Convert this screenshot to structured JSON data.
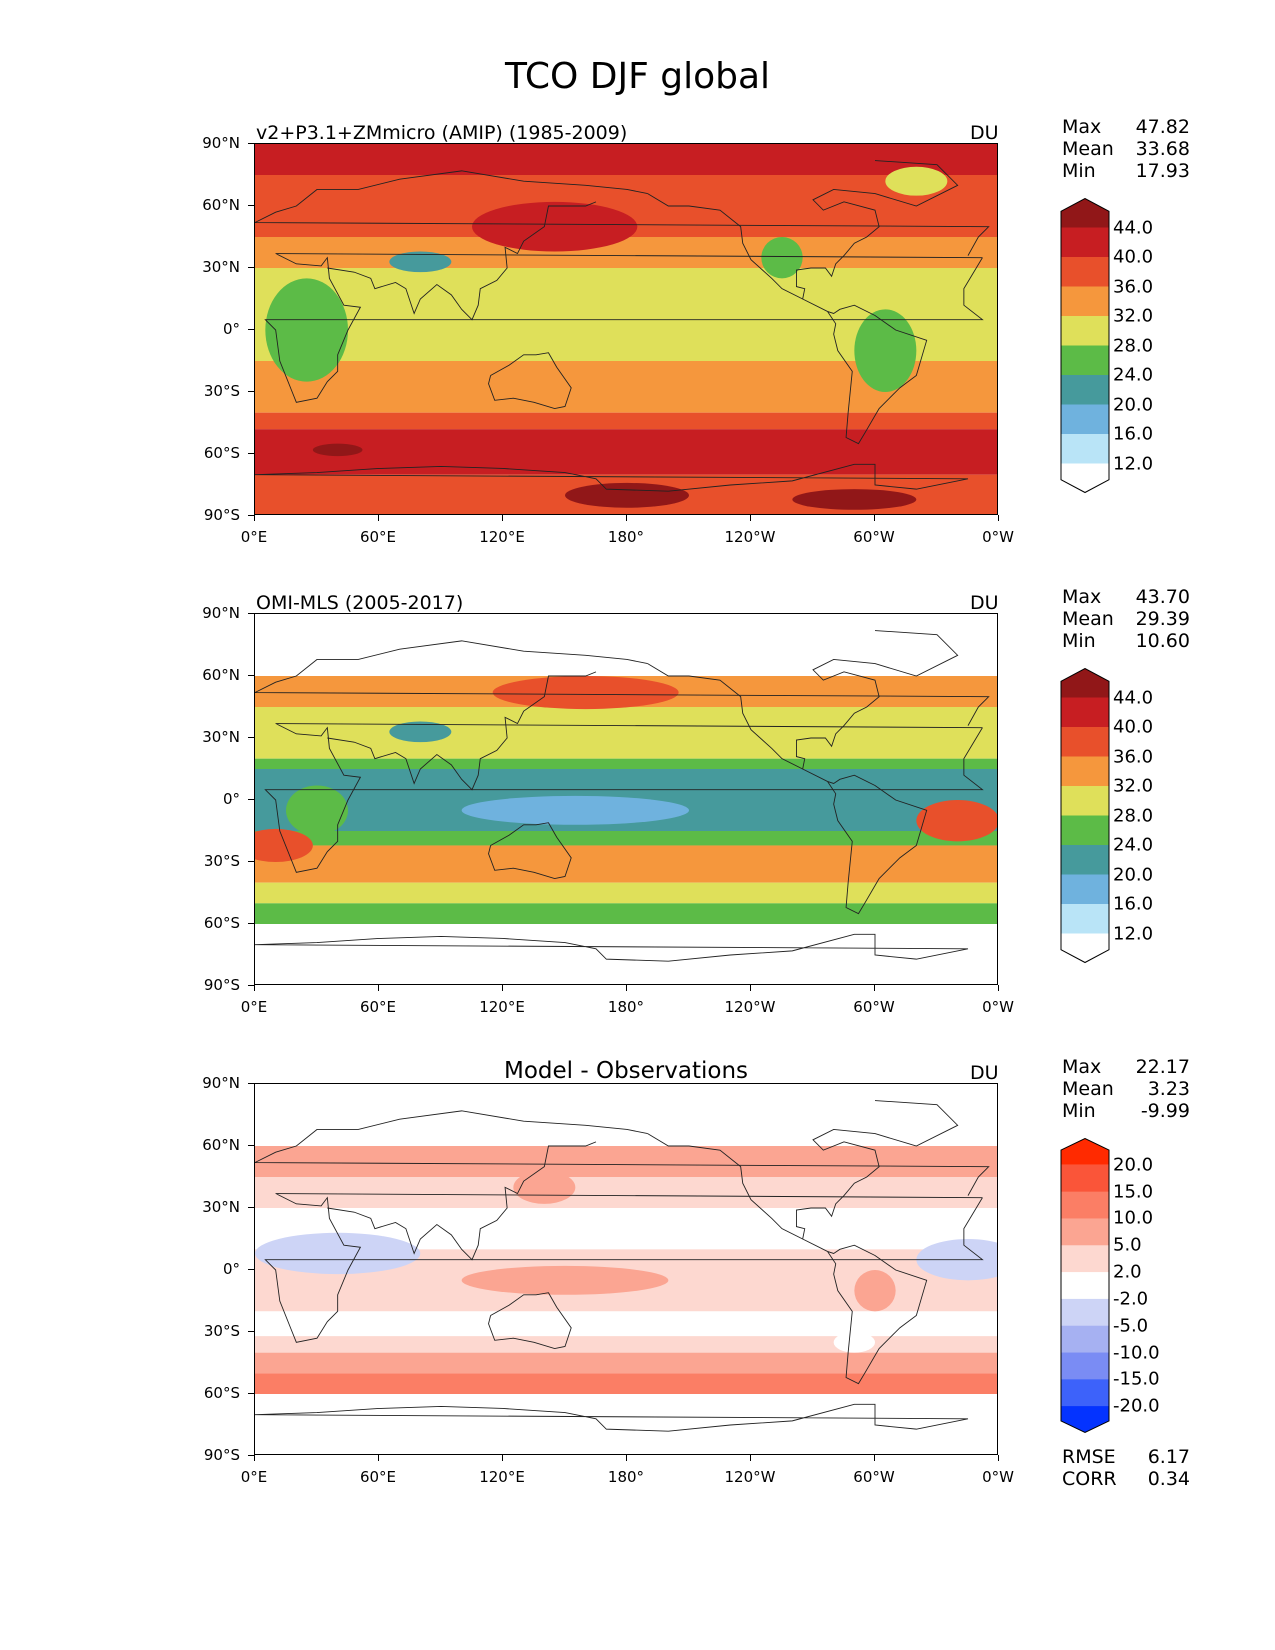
{
  "figure_title": "TCO DJF global",
  "chart_data": [
    {
      "type": "heatmap",
      "panel": "model",
      "title_left": "v2+P3.1+ZMmicro (AMIP) (1985-2009)",
      "title_center": "",
      "units": "DU",
      "x_tick_labels": [
        "0°E",
        "60°E",
        "120°E",
        "180°",
        "120°W",
        "60°W",
        "0°W"
      ],
      "y_tick_labels": [
        "90°N",
        "60°N",
        "30°N",
        "0°",
        "30°S",
        "60°S",
        "90°S"
      ],
      "stats": [
        {
          "label": "Max",
          "value": "47.82"
        },
        {
          "label": "Mean",
          "value": "33.68"
        },
        {
          "label": "Min",
          "value": "17.93"
        }
      ],
      "colorbar": {
        "levels": [
          "44.0",
          "40.0",
          "36.0",
          "32.0",
          "28.0",
          "24.0",
          "20.0",
          "16.0",
          "12.0"
        ],
        "colors": [
          "#ffffff",
          "#b9e4f7",
          "#6fb2de",
          "#469a9c",
          "#5cbb47",
          "#dfe05a",
          "#f5973d",
          "#e8502b",
          "#c71e22",
          "#911718"
        ]
      },
      "zonal_bands": [
        {
          "lat_from": 90,
          "lat_to": 75,
          "value": 42
        },
        {
          "lat_from": 75,
          "lat_to": 60,
          "value": 38
        },
        {
          "lat_from": 60,
          "lat_to": 45,
          "value": 36
        },
        {
          "lat_from": 45,
          "lat_to": 30,
          "value": 33
        },
        {
          "lat_from": 30,
          "lat_to": -15,
          "value": 30
        },
        {
          "lat_from": -15,
          "lat_to": -40,
          "value": 34
        },
        {
          "lat_from": -40,
          "lat_to": -48,
          "value": 37
        },
        {
          "lat_from": -48,
          "lat_to": -70,
          "value": 41
        },
        {
          "lat_from": -70,
          "lat_to": -90,
          "value": 37
        }
      ],
      "anomalies": [
        {
          "lon": 145,
          "lat": 50,
          "rlon": 40,
          "rlat": 12,
          "value": 41
        },
        {
          "lon": 25,
          "lat": 0,
          "rlon": 20,
          "rlat": 25,
          "value": 26
        },
        {
          "lon": 305,
          "lat": -10,
          "rlon": 15,
          "rlat": 20,
          "value": 26
        },
        {
          "lon": 80,
          "lat": 33,
          "rlon": 15,
          "rlat": 5,
          "value": 21
        },
        {
          "lon": 255,
          "lat": 35,
          "rlon": 10,
          "rlat": 10,
          "value": 26
        },
        {
          "lon": 180,
          "lat": -80,
          "rlon": 30,
          "rlat": 6,
          "value": 46
        },
        {
          "lon": 290,
          "lat": -82,
          "rlon": 30,
          "rlat": 5,
          "value": 46
        },
        {
          "lon": 40,
          "lat": -58,
          "rlon": 12,
          "rlat": 3,
          "value": 45
        },
        {
          "lon": 320,
          "lat": 72,
          "rlon": 15,
          "rlat": 7,
          "value": 30
        }
      ]
    },
    {
      "type": "heatmap",
      "panel": "observations",
      "title_left": "OMI-MLS (2005-2017)",
      "title_center": "",
      "units": "DU",
      "x_tick_labels": [
        "0°E",
        "60°E",
        "120°E",
        "180°",
        "120°W",
        "60°W",
        "0°W"
      ],
      "y_tick_labels": [
        "90°N",
        "60°N",
        "30°N",
        "0°",
        "30°S",
        "60°S",
        "90°S"
      ],
      "data_lat_range": [
        -60,
        60
      ],
      "stats": [
        {
          "label": "Max",
          "value": "43.70"
        },
        {
          "label": "Mean",
          "value": "29.39"
        },
        {
          "label": "Min",
          "value": "10.60"
        }
      ],
      "colorbar": {
        "levels": [
          "44.0",
          "40.0",
          "36.0",
          "32.0",
          "28.0",
          "24.0",
          "20.0",
          "16.0",
          "12.0"
        ],
        "colors": [
          "#ffffff",
          "#b9e4f7",
          "#6fb2de",
          "#469a9c",
          "#5cbb47",
          "#dfe05a",
          "#f5973d",
          "#e8502b",
          "#c71e22",
          "#911718"
        ]
      },
      "zonal_bands": [
        {
          "lat_from": 60,
          "lat_to": 45,
          "value": 33
        },
        {
          "lat_from": 45,
          "lat_to": 20,
          "value": 30
        },
        {
          "lat_from": 20,
          "lat_to": 15,
          "value": 26
        },
        {
          "lat_from": 15,
          "lat_to": -15,
          "value": 22
        },
        {
          "lat_from": -15,
          "lat_to": -22,
          "value": 26
        },
        {
          "lat_from": -22,
          "lat_to": -40,
          "value": 33
        },
        {
          "lat_from": -40,
          "lat_to": -50,
          "value": 30
        },
        {
          "lat_from": -50,
          "lat_to": -60,
          "value": 26
        }
      ],
      "anomalies": [
        {
          "lon": 160,
          "lat": 52,
          "rlon": 45,
          "rlat": 8,
          "value": 38
        },
        {
          "lon": 155,
          "lat": -5,
          "rlon": 55,
          "rlat": 7,
          "value": 19
        },
        {
          "lon": 340,
          "lat": -10,
          "rlon": 20,
          "rlat": 10,
          "value": 37
        },
        {
          "lon": 10,
          "lat": -22,
          "rlon": 18,
          "rlat": 8,
          "value": 37
        },
        {
          "lon": 80,
          "lat": 33,
          "rlon": 15,
          "rlat": 5,
          "value": 21
        },
        {
          "lon": 30,
          "lat": -5,
          "rlon": 15,
          "rlat": 12,
          "value": 26
        }
      ]
    },
    {
      "type": "heatmap",
      "panel": "difference",
      "title_left": "",
      "title_center": "Model - Observations",
      "units": "DU",
      "x_tick_labels": [
        "0°E",
        "60°E",
        "120°E",
        "180°",
        "120°W",
        "60°W",
        "0°W"
      ],
      "y_tick_labels": [
        "90°N",
        "60°N",
        "30°N",
        "0°",
        "30°S",
        "60°S",
        "90°S"
      ],
      "data_lat_range": [
        -60,
        60
      ],
      "stats": [
        {
          "label": "Max",
          "value": "22.17"
        },
        {
          "label": "Mean",
          "value": "3.23"
        },
        {
          "label": "Min",
          "value": "-9.99"
        }
      ],
      "extra_stats": [
        {
          "label": "RMSE",
          "value": "6.17"
        },
        {
          "label": "CORR",
          "value": "0.34"
        }
      ],
      "colorbar": {
        "levels": [
          "20.0",
          "15.0",
          "10.0",
          "5.0",
          "2.0",
          "-2.0",
          "-5.0",
          "-10.0",
          "-15.0",
          "-20.0"
        ],
        "colors": [
          "#0433ff",
          "#3d62fa",
          "#7a8cf4",
          "#a6b1f2",
          "#cdd4f6",
          "#ffffff",
          "#fdd8d0",
          "#fba592",
          "#fb7e65",
          "#fa5539",
          "#ff2a00"
        ]
      },
      "zonal_bands": [
        {
          "lat_from": 60,
          "lat_to": 45,
          "value": 6
        },
        {
          "lat_from": 45,
          "lat_to": 30,
          "value": 4
        },
        {
          "lat_from": 30,
          "lat_to": 10,
          "value": 0
        },
        {
          "lat_from": 10,
          "lat_to": -20,
          "value": 4
        },
        {
          "lat_from": -20,
          "lat_to": -32,
          "value": 0
        },
        {
          "lat_from": -32,
          "lat_to": -40,
          "value": 3
        },
        {
          "lat_from": -40,
          "lat_to": -50,
          "value": 7
        },
        {
          "lat_from": -50,
          "lat_to": -60,
          "value": 12
        }
      ],
      "anomalies": [
        {
          "lon": 40,
          "lat": 8,
          "rlon": 40,
          "rlat": 10,
          "value": -4
        },
        {
          "lon": 345,
          "lat": 5,
          "rlon": 25,
          "rlat": 10,
          "value": -4
        },
        {
          "lon": 150,
          "lat": -5,
          "rlon": 50,
          "rlat": 7,
          "value": 8
        },
        {
          "lon": 140,
          "lat": 40,
          "rlon": 15,
          "rlat": 8,
          "value": 9
        },
        {
          "lon": 300,
          "lat": -10,
          "rlon": 10,
          "rlat": 10,
          "value": 6
        },
        {
          "lon": 290,
          "lat": -35,
          "rlon": 10,
          "rlat": 5,
          "value": 0
        }
      ]
    }
  ]
}
